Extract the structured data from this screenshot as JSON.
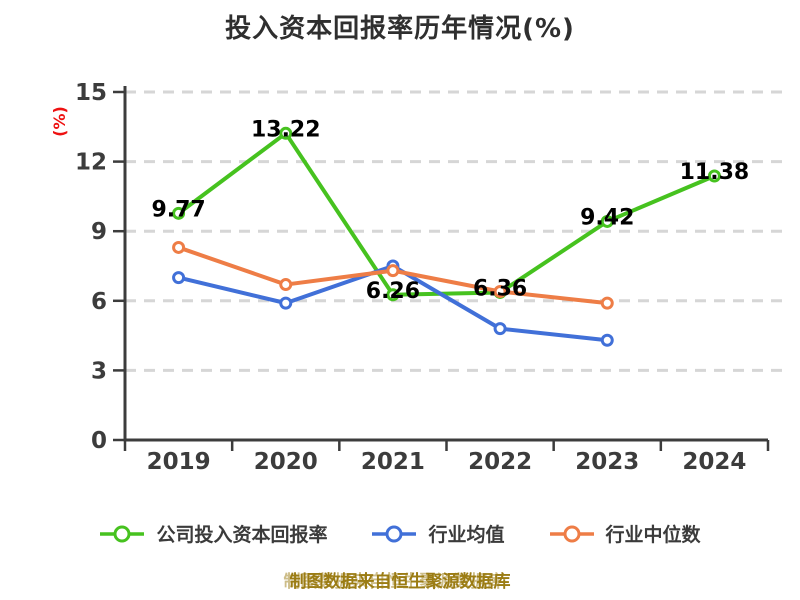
{
  "chart_data": {
    "type": "line",
    "title": "投入资本回报率历年情况(%)",
    "ylabel": "(%)",
    "footer": "制图数据来自恒生聚源数据库",
    "categories": [
      "2019",
      "2020",
      "2021",
      "2022",
      "2023",
      "2024"
    ],
    "yticks": [
      0,
      3,
      6,
      9,
      12,
      15
    ],
    "ylim": [
      0,
      15
    ],
    "grid": "horizontal-dashed",
    "legend_position": "bottom",
    "series": [
      {
        "name": "公司投入资本回报率",
        "color": "#46c21f",
        "values": [
          9.77,
          13.22,
          6.26,
          6.36,
          9.42,
          11.38
        ],
        "labels": [
          "9.77",
          "13.22",
          "6.26",
          "6.36",
          "9.42",
          "11.38"
        ]
      },
      {
        "name": "行业均值",
        "color": "#4170d8",
        "values": [
          7.0,
          5.9,
          7.5,
          4.8,
          4.3,
          null
        ],
        "labels": null
      },
      {
        "name": "行业中位数",
        "color": "#ee7d46",
        "values": [
          8.3,
          6.7,
          7.3,
          6.4,
          5.9,
          null
        ],
        "labels": null
      }
    ],
    "colors": {
      "grid": "#d6d6d6",
      "axis": "#3c3c3c",
      "tick_text": "#3c3c3c",
      "title": "#2f2f2f",
      "data_label": "#000000",
      "ylabel": "#ee1111",
      "footer": "#9b7c14",
      "marker_fill": "#ffffff"
    }
  }
}
